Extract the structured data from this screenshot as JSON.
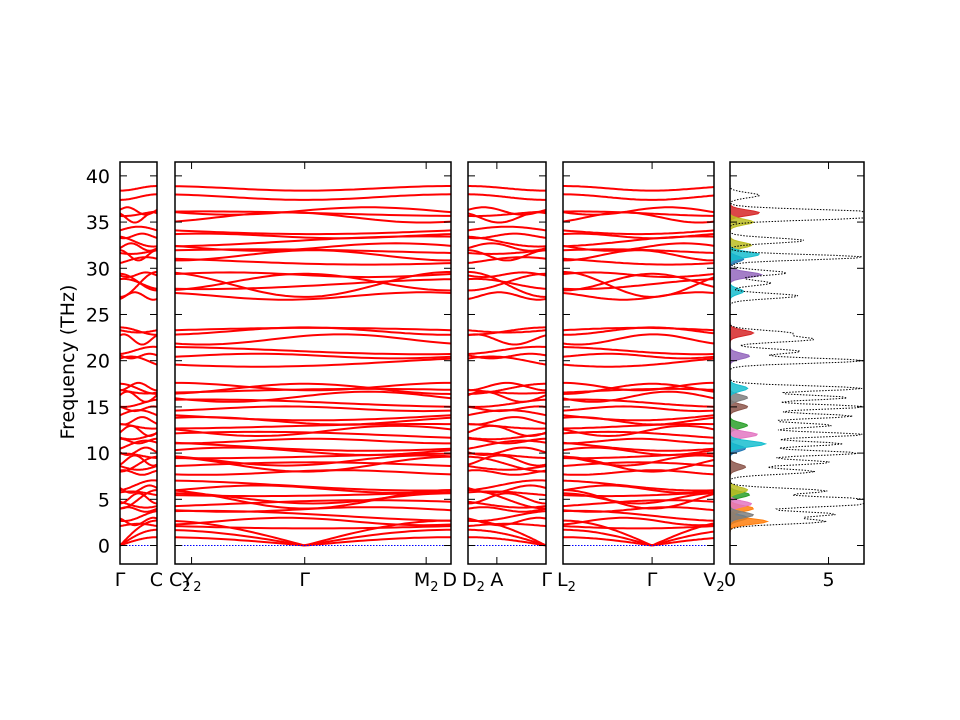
{
  "chart_data": {
    "type": "line",
    "ylabel": "Frequency (THz)",
    "ylim": [
      -2,
      41.5
    ],
    "yticks": [
      0,
      5,
      10,
      15,
      20,
      25,
      30,
      35,
      40
    ],
    "colors": {
      "bands": "#ff0000",
      "zero_line": "#0000ff",
      "frame": "#000000",
      "total_dos": "#000000"
    },
    "band_panels": [
      {
        "ticks": [
          {
            "x": 0,
            "label": "Γ"
          },
          {
            "x": 1,
            "label": "C"
          }
        ]
      },
      {
        "ticks": [
          {
            "x": 0,
            "label": "C",
            "sub": "2"
          },
          {
            "x": 0.06,
            "label": "Y",
            "sub": "2"
          },
          {
            "x": 0.47,
            "label": "Γ"
          },
          {
            "x": 0.91,
            "label": "M",
            "sub": "2"
          },
          {
            "x": 1,
            "label": "D"
          }
        ]
      },
      {
        "ticks": [
          {
            "x": 0,
            "label": "D",
            "sub": "2"
          },
          {
            "x": 0.37,
            "label": "A"
          },
          {
            "x": 1,
            "label": "Γ"
          }
        ]
      },
      {
        "ticks": [
          {
            "x": 0,
            "label": "L",
            "sub": "2"
          },
          {
            "x": 0.59,
            "label": "Γ"
          },
          {
            "x": 1,
            "label": "V",
            "sub": "2"
          }
        ]
      }
    ],
    "bands": {
      "flat": [
        2.1,
        2.6,
        3.2,
        3.9,
        4.5,
        5.1,
        5.6,
        6.1,
        6.5,
        7.9,
        8.6,
        9.2,
        9.7,
        10.2,
        10.8,
        11.3,
        11.9,
        12.4,
        12.9,
        13.5,
        14.1,
        14.8,
        15.4,
        16.1,
        16.7,
        17.2,
        19.9,
        20.5,
        21.1,
        22.3,
        23.3,
        27.0,
        28.3,
        29.3,
        30.8,
        31.4,
        31.8,
        32.3,
        32.9,
        33.5,
        34.1,
        35.5,
        35.9,
        36.2
      ],
      "dispersive": [
        {
          "gamma": 4.0,
          "edge": 6.0
        },
        {
          "gamma": 8.0,
          "edge": 9.6
        },
        {
          "gamma": 17.5,
          "edge": 16.4
        },
        {
          "gamma": 23.6,
          "edge": 22.8
        },
        {
          "gamma": 29.4,
          "edge": 27.6
        },
        {
          "gamma": 26.9,
          "edge": 29.6
        },
        {
          "gamma": 38.4,
          "edge": 38.9
        },
        {
          "gamma": 37.4,
          "edge": 38.0
        }
      ],
      "acoustic": [
        {
          "gamma": 0,
          "edge": 2.7
        },
        {
          "gamma": 0,
          "edge": 1.7
        },
        {
          "gamma": 0,
          "edge": 0.9
        }
      ]
    },
    "dos_panel": {
      "xlim": [
        0,
        6.8
      ],
      "xticks": [
        0,
        5
      ],
      "peaks_total": [
        {
          "f": 2.6,
          "h": 4.8
        },
        {
          "f": 3.4,
          "h": 5.3
        },
        {
          "f": 4.4,
          "h": 5.8
        },
        {
          "f": 5.0,
          "h": 6.7
        },
        {
          "f": 5.9,
          "h": 4.9
        },
        {
          "f": 8.0,
          "h": 4.3
        },
        {
          "f": 9.0,
          "h": 5.1
        },
        {
          "f": 10.0,
          "h": 6.5
        },
        {
          "f": 11.0,
          "h": 5.7
        },
        {
          "f": 12.0,
          "h": 6.8
        },
        {
          "f": 13.0,
          "h": 5.2
        },
        {
          "f": 14.0,
          "h": 6.2
        },
        {
          "f": 15.0,
          "h": 6.8
        },
        {
          "f": 16.0,
          "h": 6.0
        },
        {
          "f": 17.0,
          "h": 6.7
        },
        {
          "f": 20.0,
          "h": 6.8
        },
        {
          "f": 21.0,
          "h": 3.6
        },
        {
          "f": 22.3,
          "h": 4.2
        },
        {
          "f": 23.0,
          "h": 3.0
        },
        {
          "f": 27.0,
          "h": 3.5
        },
        {
          "f": 28.4,
          "h": 2.1
        },
        {
          "f": 29.5,
          "h": 2.9
        },
        {
          "f": 31.2,
          "h": 6.8
        },
        {
          "f": 33.0,
          "h": 3.8
        },
        {
          "f": 35.5,
          "h": 6.8
        },
        {
          "f": 36.1,
          "h": 6.8
        },
        {
          "f": 37.9,
          "h": 1.5
        }
      ],
      "partials": [
        {
          "color": "#1f77b4",
          "peaks": [
            {
              "f": 3.0,
              "h": 0.9
            },
            {
              "f": 10.5,
              "h": 0.8
            },
            {
              "f": 31.0,
              "h": 0.7
            }
          ]
        },
        {
          "color": "#ff7f0e",
          "peaks": [
            {
              "f": 2.6,
              "h": 1.9
            },
            {
              "f": 4.0,
              "h": 1.2
            }
          ]
        },
        {
          "color": "#2ca02c",
          "peaks": [
            {
              "f": 5.5,
              "h": 1.0
            },
            {
              "f": 13.0,
              "h": 0.9
            }
          ]
        },
        {
          "color": "#d62728",
          "peaks": [
            {
              "f": 23.0,
              "h": 1.2
            },
            {
              "f": 36.0,
              "h": 1.5
            }
          ]
        },
        {
          "color": "#9467bd",
          "peaks": [
            {
              "f": 20.5,
              "h": 1.0
            },
            {
              "f": 29.3,
              "h": 1.6
            }
          ]
        },
        {
          "color": "#8c564b",
          "peaks": [
            {
              "f": 15.0,
              "h": 0.9
            },
            {
              "f": 8.5,
              "h": 0.8
            }
          ]
        },
        {
          "color": "#e377c2",
          "peaks": [
            {
              "f": 12.0,
              "h": 1.4
            },
            {
              "f": 4.5,
              "h": 1.1
            }
          ]
        },
        {
          "color": "#7f7f7f",
          "peaks": [
            {
              "f": 3.3,
              "h": 1.2
            },
            {
              "f": 16.0,
              "h": 0.9
            }
          ]
        },
        {
          "color": "#bcbd22",
          "peaks": [
            {
              "f": 35.0,
              "h": 1.2
            },
            {
              "f": 32.5,
              "h": 1.1
            },
            {
              "f": 6.0,
              "h": 0.9
            }
          ]
        },
        {
          "color": "#17becf",
          "peaks": [
            {
              "f": 11.0,
              "h": 1.8
            },
            {
              "f": 31.5,
              "h": 1.5
            },
            {
              "f": 17.0,
              "h": 0.9
            },
            {
              "f": 27.5,
              "h": 0.7
            }
          ]
        }
      ]
    }
  }
}
